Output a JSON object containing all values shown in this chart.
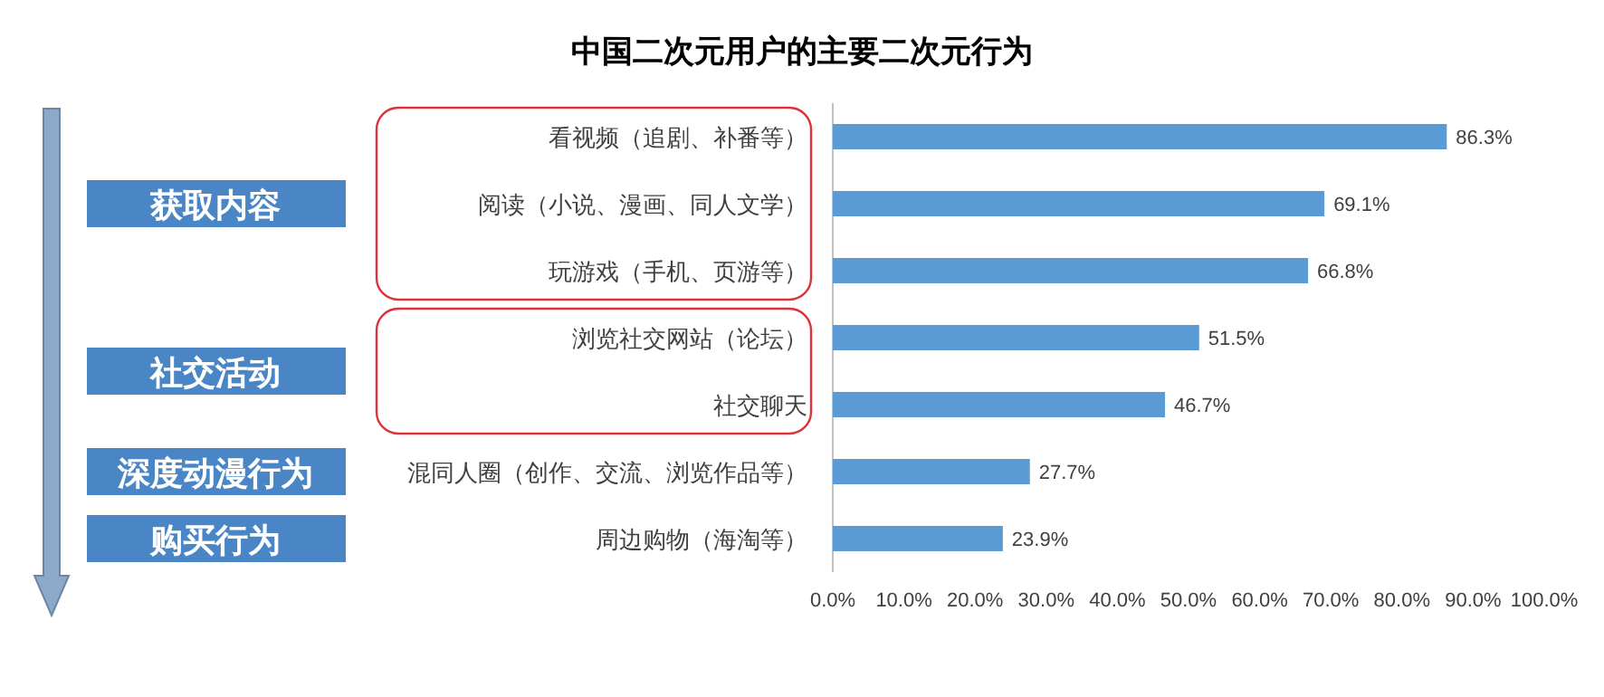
{
  "chart_data": {
    "type": "bar",
    "orientation": "horizontal",
    "title": "中国二次元用户的主要二次元行为",
    "categories": [
      "看视频（追剧、补番等）",
      "阅读（小说、漫画、同人文学）",
      "玩游戏（手机、页游等）",
      "浏览社交网站（论坛）",
      "社交聊天",
      "混同人圈（创作、交流、浏览作品等）",
      "周边购物（海淘等）"
    ],
    "values": [
      86.3,
      69.1,
      66.8,
      51.5,
      46.7,
      27.7,
      23.9
    ],
    "color": "#5b9bd5",
    "value_labels": [
      "86.3%",
      "69.1%",
      "66.8%",
      "51.5%",
      "46.7%",
      "27.7%",
      "23.9%"
    ],
    "xlim": [
      0,
      100
    ],
    "xticks": [
      {
        "value": 0,
        "label": "0.0%"
      },
      {
        "value": 10,
        "label": "10.0%"
      },
      {
        "value": 20,
        "label": "20.0%"
      },
      {
        "value": 30,
        "label": "30.0%"
      },
      {
        "value": 40,
        "label": "40.0%"
      },
      {
        "value": 50,
        "label": "50.0%"
      },
      {
        "value": 60,
        "label": "60.0%"
      },
      {
        "value": 70,
        "label": "70.0%"
      },
      {
        "value": 80,
        "label": "80.0%"
      },
      {
        "value": 90,
        "label": "90.0%"
      },
      {
        "value": 100,
        "label": "100.0%"
      }
    ],
    "annotations": [
      "获取内容",
      "社交活动",
      "深度动漫行为",
      "购买行为"
    ]
  }
}
